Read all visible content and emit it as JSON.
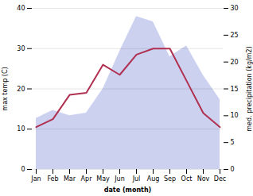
{
  "chart_data": {
    "type": "line",
    "xlabel": "date (month)",
    "ylabel": "max temp (C)",
    "y2label": "med. precipitation (kg/m2)",
    "categories": [
      "Jan",
      "Feb",
      "Mar",
      "Apr",
      "May",
      "Jun",
      "Jul",
      "Aug",
      "Sep",
      "Oct",
      "Nov",
      "Dec"
    ],
    "series": [
      {
        "type": "area",
        "axis": "y2",
        "color": "#b0b8e8",
        "values": [
          9.5,
          11.0,
          10.0,
          10.5,
          15.0,
          22.0,
          28.5,
          27.5,
          21.0,
          23.0,
          17.5,
          13.0
        ]
      },
      {
        "type": "line",
        "color": "#b03050",
        "values": [
          10.5,
          12.5,
          18.5,
          19.0,
          26.0,
          23.5,
          28.5,
          30.0,
          30.0,
          22.0,
          14.0,
          10.5
        ]
      }
    ],
    "ylim": [
      0,
      40
    ],
    "yticks": [
      0,
      10,
      20,
      30,
      40
    ],
    "y2lim": [
      0,
      30
    ],
    "y2ticks": [
      0,
      5,
      10,
      15,
      20,
      25,
      30
    ],
    "grid": true
  }
}
